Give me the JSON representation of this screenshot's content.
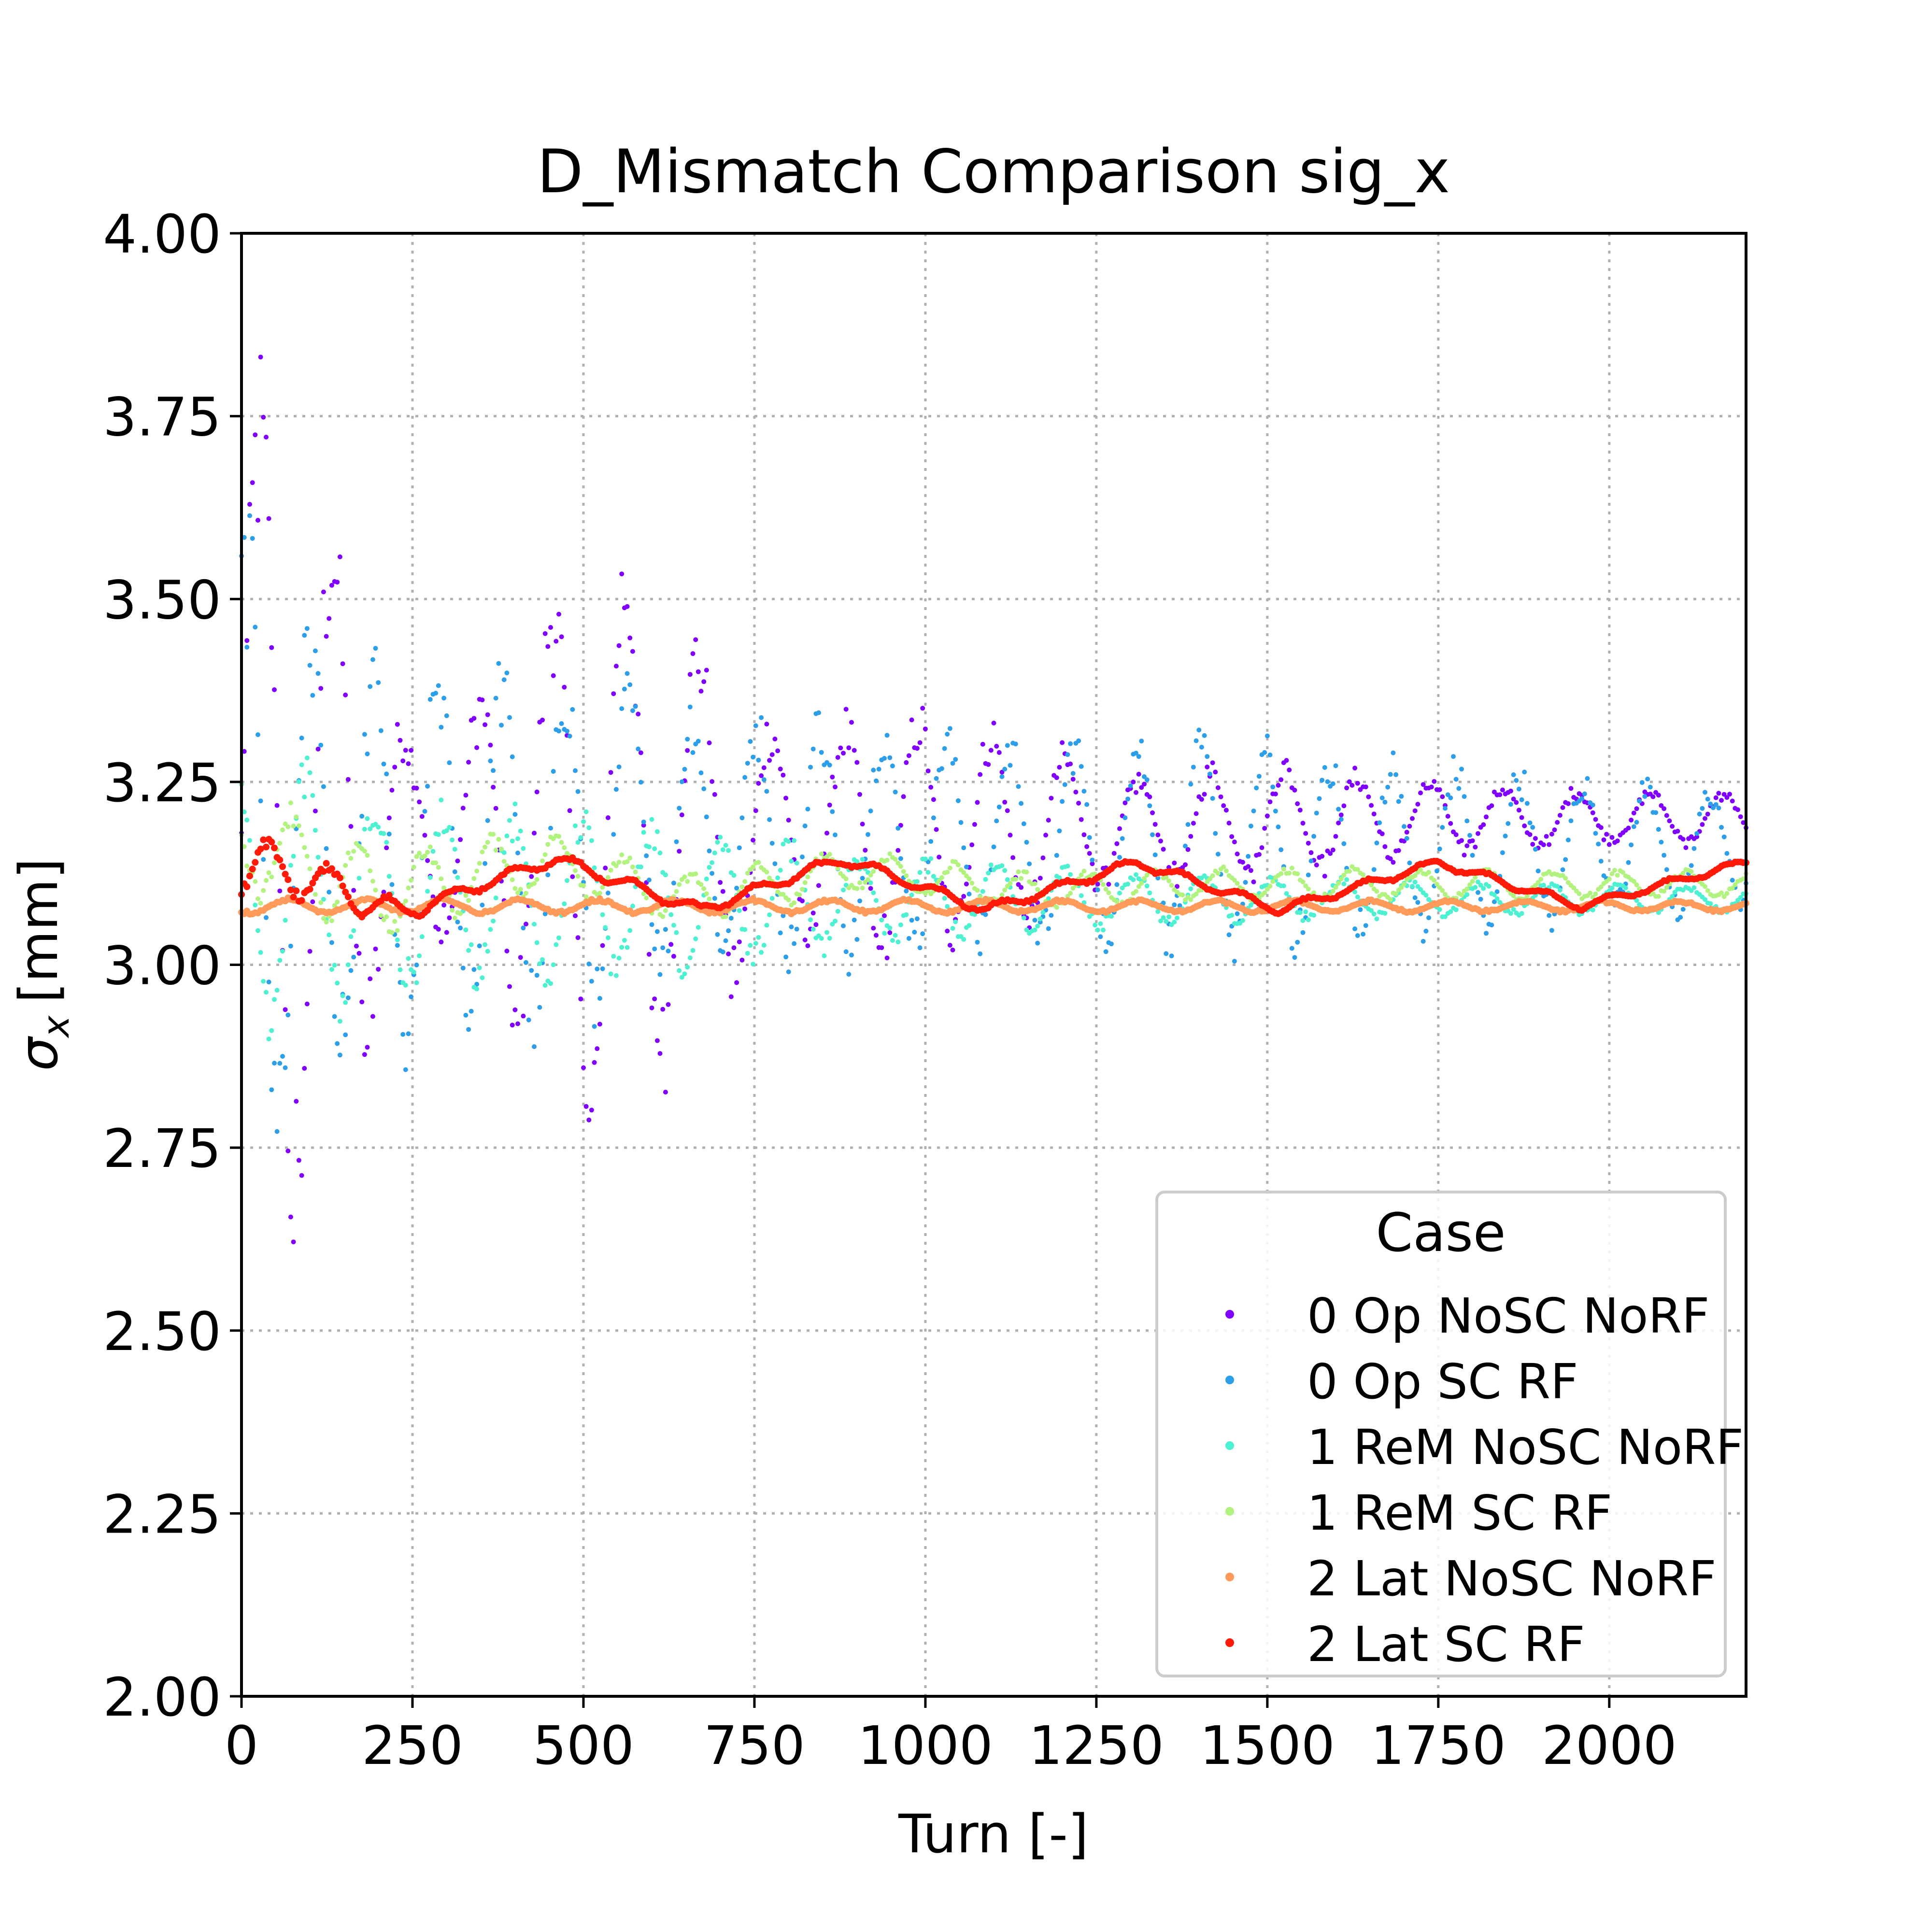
{
  "chart_data": {
    "type": "scatter",
    "title": "D_Mismatch Comparison sig_x",
    "xlabel": "Turn [-]",
    "ylabel_symbol": "σ",
    "ylabel_subscript": "x",
    "ylabel_unit": "[mm]",
    "xlim": [
      0,
      2200
    ],
    "ylim": [
      2.0,
      4.0
    ],
    "xticks": [
      0,
      250,
      500,
      750,
      1000,
      1250,
      1500,
      1750,
      2000
    ],
    "xtick_labels": [
      "0",
      "250",
      "500",
      "750",
      "1000",
      "1250",
      "1500",
      "1750",
      "2000"
    ],
    "yticks": [
      2.0,
      2.25,
      2.5,
      2.75,
      3.0,
      3.25,
      3.5,
      3.75,
      4.0
    ],
    "ytick_labels": [
      "2.00",
      "2.25",
      "2.50",
      "2.75",
      "3.00",
      "3.25",
      "3.50",
      "3.75",
      "4.00"
    ],
    "grid": true,
    "legend": {
      "title": "Case",
      "position": "lower-right"
    },
    "series": [
      {
        "name": "0 Op NoSC NoRF",
        "color": "#8000ff",
        "center": [
          [
            0,
            3.18
          ],
          [
            200,
            3.18
          ],
          [
            500,
            3.18
          ],
          [
            800,
            3.18
          ],
          [
            1100,
            3.18
          ],
          [
            1400,
            3.19
          ],
          [
            1700,
            3.2
          ],
          [
            2200,
            3.2
          ]
        ],
        "envelope": [
          [
            0,
            0.7
          ],
          [
            50,
            0.68
          ],
          [
            150,
            0.45
          ],
          [
            250,
            0.14
          ],
          [
            350,
            0.22
          ],
          [
            500,
            0.46
          ],
          [
            600,
            0.42
          ],
          [
            700,
            0.26
          ],
          [
            800,
            0.15
          ],
          [
            950,
            0.2
          ],
          [
            1100,
            0.17
          ],
          [
            1300,
            0.08
          ],
          [
            1500,
            0.1
          ],
          [
            1700,
            0.06
          ],
          [
            1900,
            0.05
          ],
          [
            2200,
            0.04
          ]
        ]
      },
      {
        "name": "0 Op SC RF",
        "color": "#2d9ee8",
        "center": [
          [
            0,
            3.15
          ],
          [
            300,
            3.15
          ],
          [
            600,
            3.17
          ],
          [
            900,
            3.17
          ],
          [
            1200,
            3.17
          ],
          [
            1500,
            3.16
          ],
          [
            1800,
            3.16
          ],
          [
            2200,
            3.16
          ]
        ],
        "envelope": [
          [
            0,
            0.52
          ],
          [
            150,
            0.3
          ],
          [
            300,
            0.3
          ],
          [
            500,
            0.27
          ],
          [
            700,
            0.2
          ],
          [
            900,
            0.2
          ],
          [
            1100,
            0.16
          ],
          [
            1300,
            0.17
          ],
          [
            1500,
            0.16
          ],
          [
            1700,
            0.14
          ],
          [
            1900,
            0.12
          ],
          [
            2200,
            0.09
          ]
        ]
      },
      {
        "name": "1 ReM NoSC NoRF",
        "color": "#4df0d0",
        "center": [
          [
            0,
            3.1
          ],
          [
            400,
            3.09
          ],
          [
            800,
            3.09
          ],
          [
            1200,
            3.09
          ],
          [
            1600,
            3.09
          ],
          [
            2200,
            3.09
          ]
        ],
        "envelope": [
          [
            0,
            0.22
          ],
          [
            300,
            0.14
          ],
          [
            600,
            0.13
          ],
          [
            900,
            0.07
          ],
          [
            1200,
            0.05
          ],
          [
            1600,
            0.03
          ],
          [
            2200,
            0.02
          ]
        ]
      },
      {
        "name": "1 ReM SC RF",
        "color": "#b2f27e",
        "center": [
          [
            0,
            3.17
          ],
          [
            200,
            3.1
          ],
          [
            450,
            3.14
          ],
          [
            650,
            3.09
          ],
          [
            900,
            3.13
          ],
          [
            1150,
            3.1
          ],
          [
            1400,
            3.11
          ],
          [
            1750,
            3.11
          ],
          [
            2200,
            3.11
          ]
        ],
        "envelope": [
          [
            0,
            0.09
          ],
          [
            300,
            0.06
          ],
          [
            600,
            0.04
          ],
          [
            1000,
            0.03
          ],
          [
            2200,
            0.02
          ]
        ]
      },
      {
        "name": "2 Lat NoSC NoRF",
        "color": "#ff9a5a",
        "center": [
          [
            0,
            3.08
          ],
          [
            2200,
            3.08
          ]
        ],
        "envelope": [
          [
            0,
            0.012
          ],
          [
            2200,
            0.008
          ]
        ]
      },
      {
        "name": "2 Lat SC RF",
        "color": "#ff1a0a",
        "center": [
          [
            0,
            3.14
          ],
          [
            100,
            3.12
          ],
          [
            230,
            3.07
          ],
          [
            460,
            3.145
          ],
          [
            670,
            3.075
          ],
          [
            880,
            3.145
          ],
          [
            1090,
            3.075
          ],
          [
            1310,
            3.14
          ],
          [
            1520,
            3.075
          ],
          [
            1750,
            3.14
          ],
          [
            1960,
            3.08
          ],
          [
            2200,
            3.14
          ]
        ],
        "envelope": [
          [
            0,
            0.05
          ],
          [
            150,
            0.03
          ],
          [
            300,
            0.01
          ],
          [
            2200,
            0.006
          ]
        ]
      }
    ]
  }
}
